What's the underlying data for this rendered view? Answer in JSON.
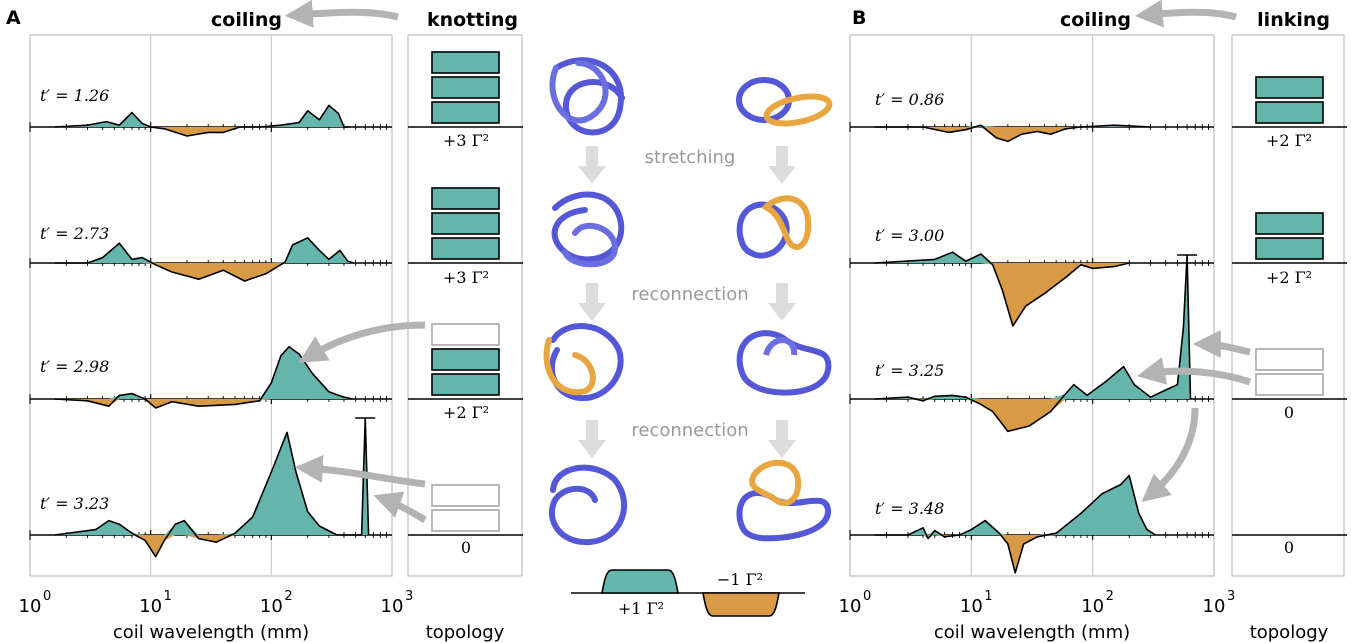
{
  "panels": [
    {
      "letter": "A",
      "left_heading": "coiling",
      "right_heading": "knotting",
      "xlabel": "coil wavelength (mm)",
      "topology_xlabel": "topology",
      "x_ticks": [
        {
          "base": "10",
          "exp": "0"
        },
        {
          "base": "10",
          "exp": "1"
        },
        {
          "base": "10",
          "exp": "2"
        },
        {
          "base": "10",
          "exp": "3"
        }
      ],
      "rows": [
        {
          "time": "t′ = 1.26",
          "topology_label": "+3 Γ²",
          "filled_boxes": 3,
          "empty_boxes": 0
        },
        {
          "time": "t′ = 2.73",
          "topology_label": "+3 Γ²",
          "filled_boxes": 3,
          "empty_boxes": 0
        },
        {
          "time": "t′ = 2.98",
          "topology_label": "+2 Γ²",
          "filled_boxes": 2,
          "empty_boxes": 1
        },
        {
          "time": "t′ = 3.23",
          "topology_label": "0",
          "filled_boxes": 0,
          "empty_boxes": 2
        }
      ]
    },
    {
      "letter": "B",
      "left_heading": "coiling",
      "right_heading": "linking",
      "xlabel": "coil wavelength (mm)",
      "topology_xlabel": "topology",
      "x_ticks": [
        {
          "base": "10",
          "exp": "0"
        },
        {
          "base": "10",
          "exp": "1"
        },
        {
          "base": "10",
          "exp": "2"
        },
        {
          "base": "10",
          "exp": "3"
        }
      ],
      "rows": [
        {
          "time": "t′ = 0.86",
          "topology_label": "+2 Γ²",
          "filled_boxes": 2,
          "empty_boxes": 0
        },
        {
          "time": "t′ = 3.00",
          "topology_label": "+2 Γ²",
          "filled_boxes": 2,
          "empty_boxes": 0
        },
        {
          "time": "t′ = 3.25",
          "topology_label": "0",
          "filled_boxes": 0,
          "empty_boxes": 2
        },
        {
          "time": "t′ = 3.48",
          "topology_label": "0",
          "filled_boxes": 0,
          "empty_boxes": 0
        }
      ]
    }
  ],
  "middle": {
    "stage_labels": [
      "stretching",
      "reconnection",
      "reconnection"
    ],
    "legend_positive": "+1 Γ²",
    "legend_negative": "−1 Γ²"
  },
  "colors": {
    "positive": "#66b5ad",
    "negative": "#d99a45",
    "tube_blue": "#5558d6",
    "tube_orange": "#e8a640",
    "arrow_gray": "#b3b3b3",
    "grid": "#cccccc",
    "empty_box": "#a6a6a6"
  },
  "chart_data": [
    {
      "type": "area",
      "panel": "A",
      "xscale": "log",
      "xlim": [
        1,
        1000
      ],
      "xlabel": "coil wavelength (mm)",
      "series": [
        {
          "time": "t′ = 1.26",
          "x": [
            1.6,
            3,
            4.3,
            5.5,
            7,
            8.5,
            10,
            13,
            20,
            30,
            40,
            55,
            80,
            120,
            170,
            200,
            250,
            300,
            360,
            400,
            450
          ],
          "y": [
            0,
            0.02,
            0.06,
            0.02,
            0.16,
            0.04,
            0,
            -0.02,
            -0.1,
            -0.06,
            -0.06,
            0,
            0,
            0.02,
            0.05,
            0.18,
            0.08,
            0.24,
            0.15,
            0,
            0
          ]
        },
        {
          "time": "t′ = 2.73",
          "x": [
            1.6,
            3,
            4,
            5.5,
            7,
            8.5,
            11,
            15,
            25,
            40,
            60,
            90,
            130,
            150,
            200,
            250,
            300,
            370,
            430,
            480
          ],
          "y": [
            0,
            0,
            0.06,
            0.22,
            0.04,
            0.06,
            -0.02,
            -0.1,
            -0.18,
            -0.08,
            -0.2,
            -0.12,
            0.01,
            0.2,
            0.28,
            0.14,
            0.04,
            0.14,
            0.02,
            0
          ]
        },
        {
          "time": "t′ = 2.98",
          "x": [
            1.6,
            3,
            4.5,
            5.5,
            7,
            9,
            11,
            15,
            25,
            50,
            80,
            100,
            120,
            140,
            170,
            220,
            300,
            400,
            470
          ],
          "y": [
            0,
            -0.02,
            -0.08,
            0.04,
            0.06,
            0,
            -0.1,
            -0.03,
            -0.08,
            -0.06,
            -0.02,
            0.18,
            0.48,
            0.58,
            0.5,
            0.28,
            0.08,
            0.02,
            0
          ]
        },
        {
          "time": "t′ = 3.23",
          "x": [
            1.6,
            3.5,
            4.5,
            5.5,
            7,
            9,
            11,
            13,
            16,
            19,
            25,
            35,
            50,
            70,
            100,
            135,
            160,
            200,
            250,
            350,
            560,
            600,
            640
          ],
          "y": [
            0,
            0.06,
            0.16,
            0.12,
            0.02,
            -0.06,
            -0.24,
            -0.06,
            0.12,
            0.16,
            -0.04,
            -0.08,
            0.02,
            0.2,
            0.7,
            1.14,
            0.7,
            0.26,
            0.1,
            0,
            0,
            1.3,
            0
          ]
        }
      ]
    },
    {
      "type": "area",
      "panel": "B",
      "xscale": "log",
      "xlim": [
        1,
        1000
      ],
      "xlabel": "coil wavelength (mm)",
      "series": [
        {
          "time": "t′ = 0.86",
          "x": [
            1.6,
            4,
            6.5,
            9,
            12,
            16,
            20,
            26,
            35,
            45,
            60,
            80,
            150,
            300
          ],
          "y": [
            0,
            0,
            -0.06,
            -0.03,
            0.02,
            -0.12,
            -0.16,
            -0.08,
            -0.05,
            -0.08,
            -0.02,
            0,
            0.02,
            0
          ]
        },
        {
          "time": "t′ = 3.00",
          "x": [
            1.6,
            5,
            7,
            9,
            12,
            15,
            18,
            22,
            28,
            40,
            60,
            80,
            100,
            150,
            200
          ],
          "y": [
            0,
            0.04,
            0.12,
            0.02,
            0.1,
            -0.02,
            -0.3,
            -0.7,
            -0.48,
            -0.34,
            -0.16,
            -0.02,
            -0.06,
            -0.04,
            0
          ]
        },
        {
          "time": "t′ = 3.25",
          "x": [
            1.6,
            3,
            4,
            5,
            7,
            9,
            12,
            15,
            20,
            30,
            45,
            60,
            70,
            90,
            130,
            180,
            220,
            300,
            400,
            500,
            560,
            600,
            640
          ],
          "y": [
            0,
            0.02,
            -0.02,
            0.03,
            0.04,
            0.02,
            -0.06,
            -0.14,
            -0.36,
            -0.3,
            -0.14,
            0.06,
            0.16,
            0.04,
            0.2,
            0.36,
            0.16,
            0.02,
            0.1,
            0.16,
            0.8,
            1.6,
            0
          ]
        },
        {
          "time": "t′ = 3.48",
          "x": [
            1.6,
            3,
            4,
            4.4,
            5,
            6,
            8,
            10,
            13,
            17,
            20,
            23,
            27,
            35,
            50,
            80,
            120,
            170,
            200,
            240,
            280,
            330
          ],
          "y": [
            0,
            0,
            0.08,
            -0.04,
            0.05,
            -0.02,
            0,
            0.06,
            0.16,
            0.02,
            -0.1,
            -0.42,
            -0.1,
            -0.02,
            0.02,
            0.24,
            0.46,
            0.56,
            0.66,
            0.24,
            0.06,
            0
          ]
        }
      ]
    }
  ]
}
